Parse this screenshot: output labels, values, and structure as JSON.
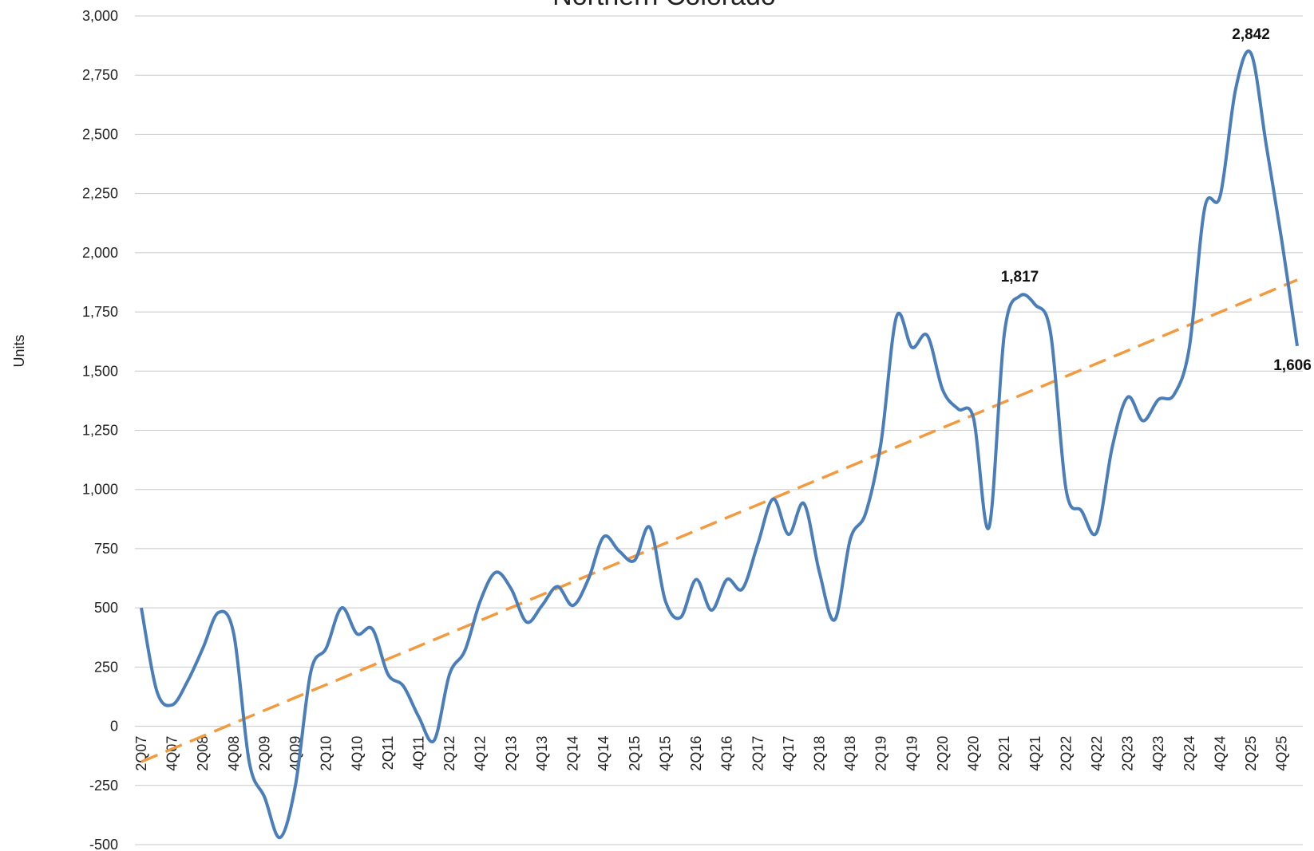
{
  "chart_data": {
    "type": "line",
    "title": "Northern Colorado",
    "y_label": "Units",
    "categories": [
      "2Q07",
      null,
      "4Q07",
      null,
      "2Q08",
      null,
      "4Q08",
      null,
      "2Q09",
      null,
      "4Q09",
      null,
      "2Q10",
      null,
      "4Q10",
      null,
      "2Q11",
      null,
      "4Q11",
      null,
      "2Q12",
      null,
      "4Q12",
      null,
      "2Q13",
      null,
      "4Q13",
      null,
      "2Q14",
      null,
      "4Q14",
      null,
      "2Q15",
      null,
      "4Q15",
      null,
      "2Q16",
      null,
      "4Q16",
      null,
      "2Q17",
      null,
      "4Q17",
      null,
      "2Q18",
      null,
      "4Q18",
      null,
      "2Q19",
      null,
      "4Q19",
      null,
      "2Q20",
      null,
      "4Q20",
      null,
      "2Q21",
      null,
      "4Q21",
      null,
      "2Q22",
      null,
      "4Q22",
      null,
      "2Q23",
      null,
      "4Q23",
      null,
      "2Q24",
      null,
      "4Q24",
      null,
      "2Q25",
      null,
      "4Q25",
      null
    ],
    "values": [
      500,
      150,
      90,
      190,
      330,
      480,
      390,
      -150,
      -300,
      -470,
      -250,
      230,
      330,
      500,
      390,
      410,
      220,
      170,
      40,
      -60,
      220,
      320,
      530,
      650,
      580,
      440,
      510,
      590,
      510,
      620,
      800,
      740,
      700,
      840,
      530,
      460,
      620,
      490,
      620,
      580,
      770,
      960,
      810,
      940,
      650,
      450,
      790,
      900,
      1200,
      1730,
      1600,
      1650,
      1420,
      1340,
      1300,
      840,
      1660,
      1817,
      1780,
      1660,
      1000,
      910,
      820,
      1180,
      1390,
      1290,
      1380,
      1400,
      1600,
      2190,
      2240,
      2690,
      2842,
      2450,
      2050,
      1606
    ],
    "value_labels": [
      null,
      null,
      null,
      null,
      null,
      null,
      null,
      null,
      null,
      null,
      null,
      null,
      null,
      null,
      null,
      null,
      null,
      null,
      null,
      null,
      null,
      null,
      null,
      null,
      null,
      null,
      null,
      null,
      null,
      null,
      null,
      null,
      null,
      null,
      null,
      null,
      null,
      null,
      null,
      null,
      null,
      null,
      null,
      null,
      null,
      null,
      null,
      null,
      null,
      null,
      null,
      null,
      null,
      null,
      null,
      null,
      null,
      "1,817",
      null,
      null,
      null,
      null,
      null,
      null,
      null,
      null,
      null,
      null,
      null,
      null,
      null,
      null,
      "2,842",
      null,
      null,
      "1,606"
    ],
    "color": "#4a7ebb",
    "trendline": {
      "values": [
        -150,
        1885
      ],
      "color": "#f39a3e"
    },
    "ylim": [
      -500,
      3000
    ],
    "yticks": [
      -500,
      -250,
      0,
      250,
      500,
      750,
      {
        "value": 1000,
        "label": "1,000"
      },
      {
        "value": 1250,
        "label": "1,250"
      },
      {
        "value": 1500,
        "label": "1,500"
      },
      {
        "value": 1750,
        "label": "1,750"
      },
      {
        "value": 2000,
        "label": "2,000"
      },
      {
        "value": 2250,
        "label": "2,250"
      },
      {
        "value": 2500,
        "label": "2,500"
      },
      {
        "value": 2750,
        "label": "2,750"
      },
      {
        "value": 3000,
        "label": "3,000"
      }
    ],
    "grid": true
  }
}
